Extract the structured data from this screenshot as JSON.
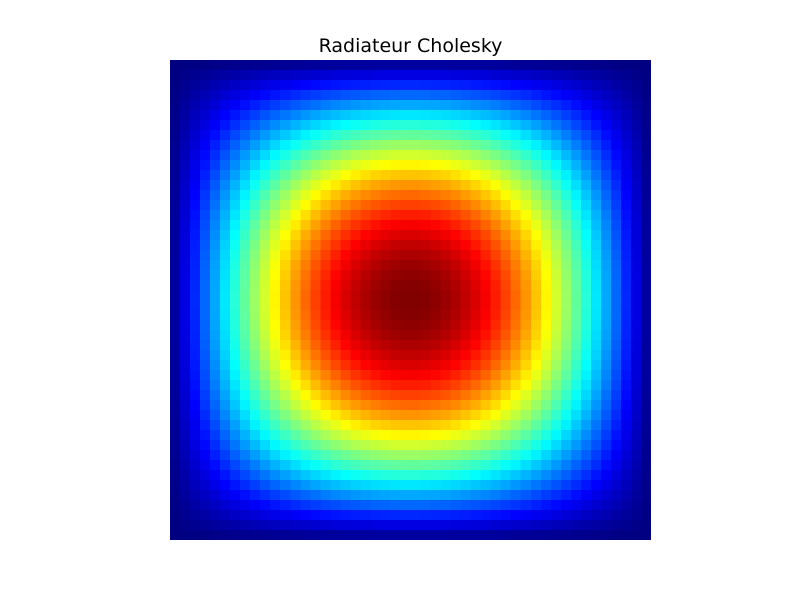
{
  "chart_data": {
    "type": "heatmap",
    "title": "Radiateur Cholesky",
    "xlabel": "",
    "ylabel": "",
    "grid": false,
    "axes_visible": false,
    "colormap": "jet",
    "nx": 48,
    "ny": 48,
    "vmin": 0,
    "vmax": 1,
    "peak": {
      "row": 23,
      "col": 24,
      "value": 1.0
    },
    "field": "sin(pi*(i+0.5)/48) * sin(pi*(j+0.5)/48), i,j = 0..47 (row, col)"
  }
}
